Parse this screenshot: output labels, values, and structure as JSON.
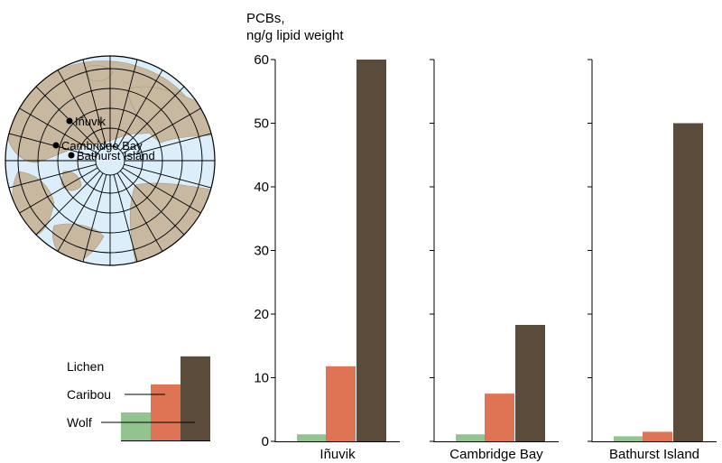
{
  "map": {
    "locations": [
      {
        "name": "Iñuvik"
      },
      {
        "name": "Cambridge Bay"
      },
      {
        "name": "Bathurst Island"
      }
    ],
    "colors": {
      "ocean": "#dbeefa",
      "land": "#c8b8a0",
      "grid": "#000000"
    }
  },
  "chart_data": {
    "type": "bar",
    "ylabel": "PCBs,\nng/g lipid weight",
    "ylabel_lines": [
      "PCBs,",
      "ng/g lipid weight"
    ],
    "ylim": [
      0,
      60
    ],
    "yticks": [
      0,
      10,
      20,
      30,
      40,
      50,
      60
    ],
    "categories": [
      "Iñuvik",
      "Cambridge Bay",
      "Bathurst Island"
    ],
    "series": [
      {
        "name": "Lichen",
        "color": "#93c48f",
        "values": [
          1.1,
          1.1,
          0.8
        ]
      },
      {
        "name": "Caribou",
        "color": "#df7454",
        "values": [
          11.8,
          7.5,
          1.5
        ]
      },
      {
        "name": "Wolf",
        "color": "#5a4b3b",
        "values": [
          60,
          18.3,
          50
        ]
      }
    ]
  },
  "legend": {
    "items": [
      {
        "label": "Wolf",
        "series": 2,
        "level": 0.69
      },
      {
        "label": "Caribou",
        "series": 1,
        "level": 0.46
      },
      {
        "label": "Lichen",
        "series": 0,
        "level": 0.23
      }
    ]
  }
}
